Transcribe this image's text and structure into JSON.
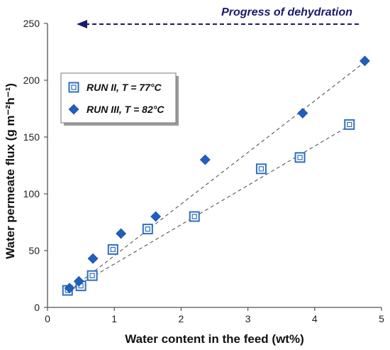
{
  "chart_data": {
    "type": "scatter",
    "title": "",
    "xlabel": "Water content in the feed (wt%)",
    "ylabel": "Water permeate flux (g m⁻²h⁻¹)",
    "xlim": [
      0,
      5
    ],
    "ylim": [
      0,
      250
    ],
    "x_ticks": [
      0,
      1,
      2,
      3,
      4,
      5
    ],
    "y_ticks": [
      0,
      50,
      100,
      150,
      200,
      250
    ],
    "x_tick_labels": [
      "0",
      "1",
      "2",
      "3",
      "4",
      "5"
    ],
    "y_tick_labels": [
      "0",
      "50",
      "100",
      "150",
      "200",
      "250"
    ],
    "grid": false,
    "legend_position": "top-left",
    "annotation": {
      "text": "Progress of dehydration",
      "arrow_direction": "left",
      "color": "#1a1a6e"
    },
    "series": [
      {
        "name": "RUN II, T = 77°C",
        "marker": "open-square",
        "color": "#2f6fbf",
        "points": [
          [
            0.3,
            15
          ],
          [
            0.5,
            19
          ],
          [
            0.67,
            28
          ],
          [
            0.98,
            51
          ],
          [
            1.5,
            69
          ],
          [
            2.2,
            80
          ],
          [
            3.2,
            122
          ],
          [
            3.78,
            132
          ],
          [
            4.52,
            161
          ]
        ],
        "trendline": [
          [
            0.3,
            14
          ],
          [
            4.52,
            160
          ]
        ]
      },
      {
        "name": "RUN III, T = 82°C",
        "marker": "filled-diamond",
        "color": "#1f5fbf",
        "points": [
          [
            0.33,
            17
          ],
          [
            0.47,
            23
          ],
          [
            0.68,
            43
          ],
          [
            1.1,
            65
          ],
          [
            1.62,
            80
          ],
          [
            2.36,
            130
          ],
          [
            3.82,
            171
          ],
          [
            4.75,
            217
          ]
        ],
        "trendline": [
          [
            0.33,
            15
          ],
          [
            4.75,
            216
          ]
        ]
      }
    ]
  }
}
